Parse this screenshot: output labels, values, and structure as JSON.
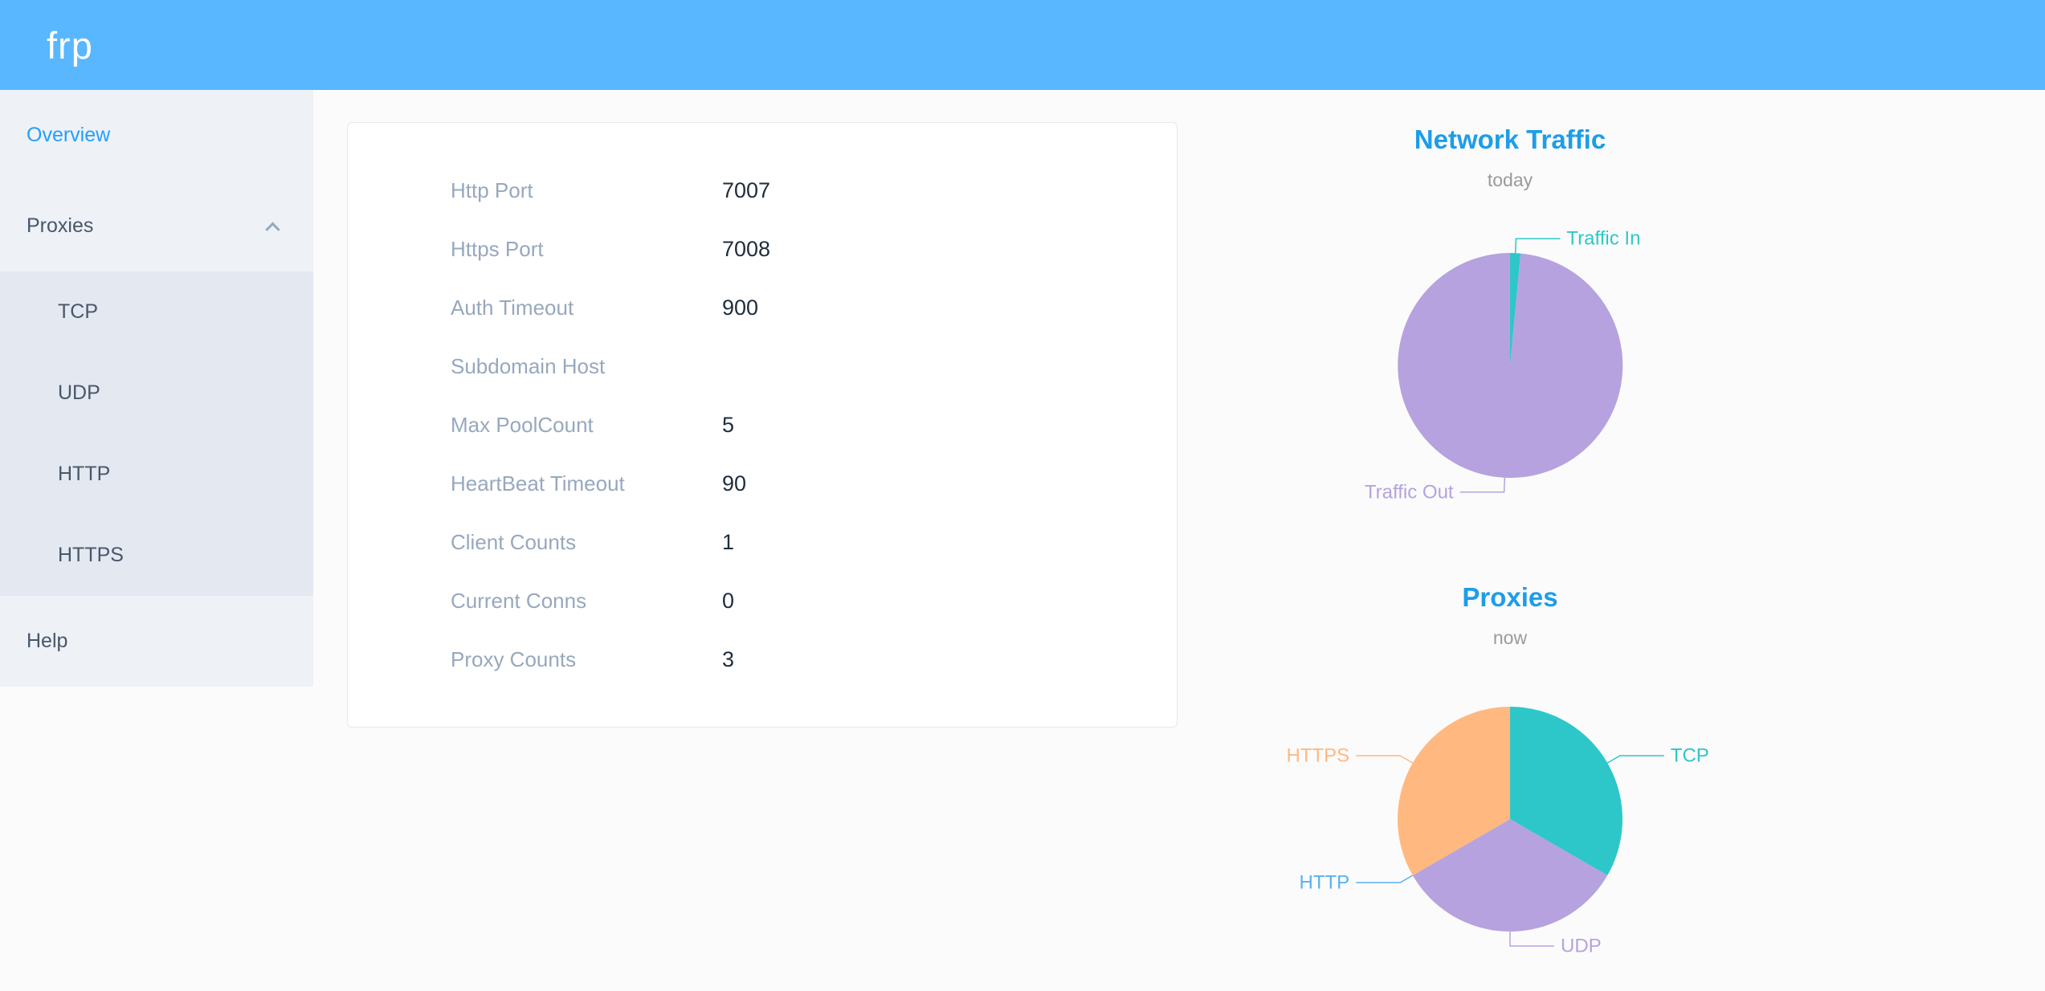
{
  "header": {
    "logo": "frp"
  },
  "sidebar": {
    "items": [
      {
        "label": "Overview",
        "active": true
      },
      {
        "label": "Proxies",
        "expanded": true,
        "children": [
          "TCP",
          "UDP",
          "HTTP",
          "HTTPS"
        ]
      },
      {
        "label": "Help"
      }
    ]
  },
  "overview": {
    "rows": [
      {
        "label": "Http Port",
        "value": "7007"
      },
      {
        "label": "Https Port",
        "value": "7008"
      },
      {
        "label": "Auth Timeout",
        "value": "900"
      },
      {
        "label": "Subdomain Host",
        "value": ""
      },
      {
        "label": "Max PoolCount",
        "value": "5"
      },
      {
        "label": "HeartBeat Timeout",
        "value": "90"
      },
      {
        "label": "Client Counts",
        "value": "1"
      },
      {
        "label": "Current Conns",
        "value": "0"
      },
      {
        "label": "Proxy Counts",
        "value": "3"
      }
    ]
  },
  "chart_data": [
    {
      "type": "pie",
      "title": "Network Traffic",
      "subtitle": "today",
      "value_unit": "percent-estimated",
      "legend": "none",
      "label_position": "outside",
      "slices": [
        {
          "name": "Traffic In",
          "value": 1.5,
          "color": "#2ec7c9"
        },
        {
          "name": "Traffic Out",
          "value": 98.5,
          "color": "#b6a2de"
        }
      ]
    },
    {
      "type": "pie",
      "title": "Proxies",
      "subtitle": "now",
      "value_unit": "count",
      "legend": "none",
      "label_position": "outside",
      "slices": [
        {
          "name": "TCP",
          "value": 1,
          "color": "#2ec7c9"
        },
        {
          "name": "UDP",
          "value": 1,
          "color": "#b6a2de"
        },
        {
          "name": "HTTP",
          "value": 0,
          "color": "#5ab1ef"
        },
        {
          "name": "HTTPS",
          "value": 1,
          "color": "#ffb980"
        }
      ]
    }
  ],
  "colors": {
    "header_bg": "#58b7ff",
    "active_menu": "#20a0ff",
    "chart_title": "#1d9de9",
    "sidebar_bg": "#eef1f6",
    "submenu_bg": "#e4e8f1"
  }
}
